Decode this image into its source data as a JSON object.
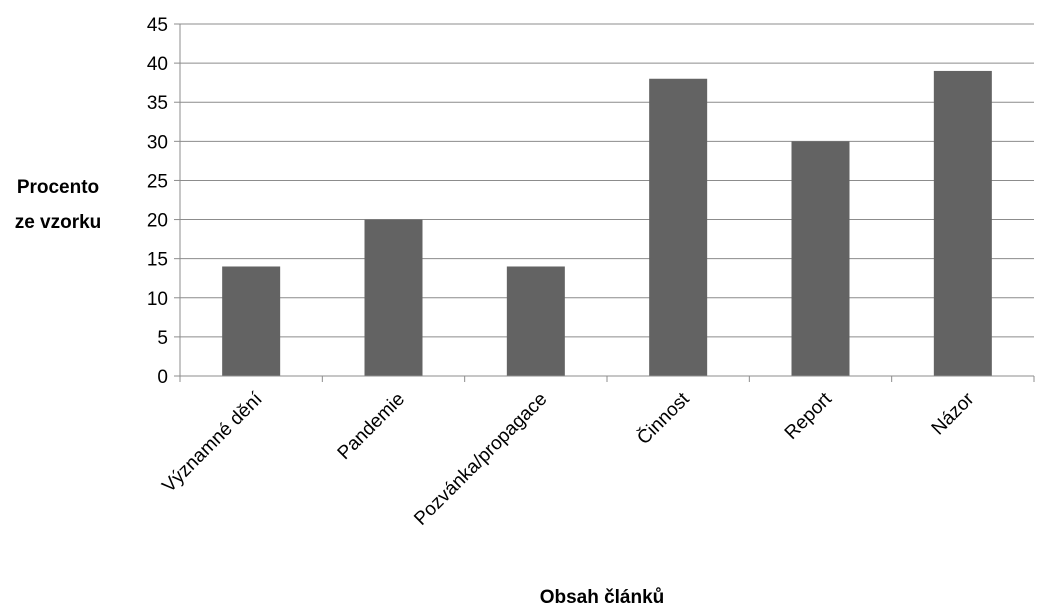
{
  "chart_data": {
    "type": "bar",
    "title": "",
    "xlabel": "Obsah článků",
    "ylabel_lines": [
      "Procento",
      "ze vzorku"
    ],
    "categories": [
      "Významné dění",
      "Pandemie",
      "Pozvánka/propagace",
      "Činnost",
      "Report",
      "Názor"
    ],
    "series": [
      {
        "values": [
          14,
          20,
          14,
          38,
          30,
          39
        ]
      }
    ],
    "ylim": [
      0,
      45
    ],
    "yticks": [
      0,
      5,
      10,
      15,
      20,
      25,
      30,
      35,
      40,
      45
    ],
    "grid": true,
    "legend": "none",
    "bar_color": "#636363"
  }
}
